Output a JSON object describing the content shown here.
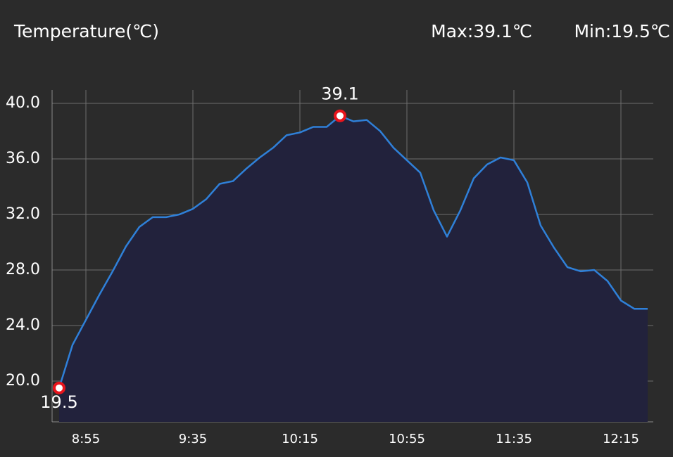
{
  "chart_data": {
    "type": "area",
    "title": "Temperature(℃)",
    "max_label": "Max:39.1℃",
    "min_label": "Min:19.5℃",
    "categories": [
      null,
      null,
      "8:55",
      null,
      null,
      null,
      null,
      null,
      null,
      null,
      "9:35",
      null,
      null,
      null,
      null,
      null,
      null,
      null,
      "10:15",
      null,
      null,
      null,
      null,
      null,
      null,
      null,
      "10:55",
      null,
      null,
      null,
      null,
      null,
      null,
      null,
      "11:35",
      null,
      null,
      null,
      null,
      null,
      null,
      null,
      "12:15",
      null,
      null
    ],
    "values": [
      19.5,
      22.6,
      24.4,
      26.2,
      27.9,
      29.7,
      31.1,
      31.8,
      31.8,
      32.0,
      32.4,
      33.1,
      34.2,
      34.4,
      35.3,
      36.1,
      36.8,
      37.7,
      37.9,
      38.3,
      38.3,
      39.1,
      38.7,
      38.8,
      38.0,
      36.8,
      35.9,
      35.0,
      32.3,
      30.4,
      32.3,
      34.6,
      35.6,
      36.1,
      35.9,
      34.3,
      31.2,
      29.6,
      28.2,
      27.9,
      28.0,
      27.2,
      25.8,
      25.2,
      25.2
    ],
    "color": "#2f80d8",
    "fill": "#22223c",
    "annotations": [
      {
        "index": 21,
        "value": 39.1
      },
      {
        "index": 0,
        "value": 19.5
      }
    ],
    "marker_color": "#e8141c",
    "ylim": [
      17.06,
      40.96
    ],
    "yticks": [
      {
        "value": 20,
        "label": "20.0"
      },
      {
        "value": 24,
        "label": "24.0"
      },
      {
        "value": 28,
        "label": "28.0"
      },
      {
        "value": 32,
        "label": "32.0"
      },
      {
        "value": 36,
        "label": "36.0"
      },
      {
        "value": 40,
        "label": "40.0"
      }
    ],
    "grid": true
  }
}
